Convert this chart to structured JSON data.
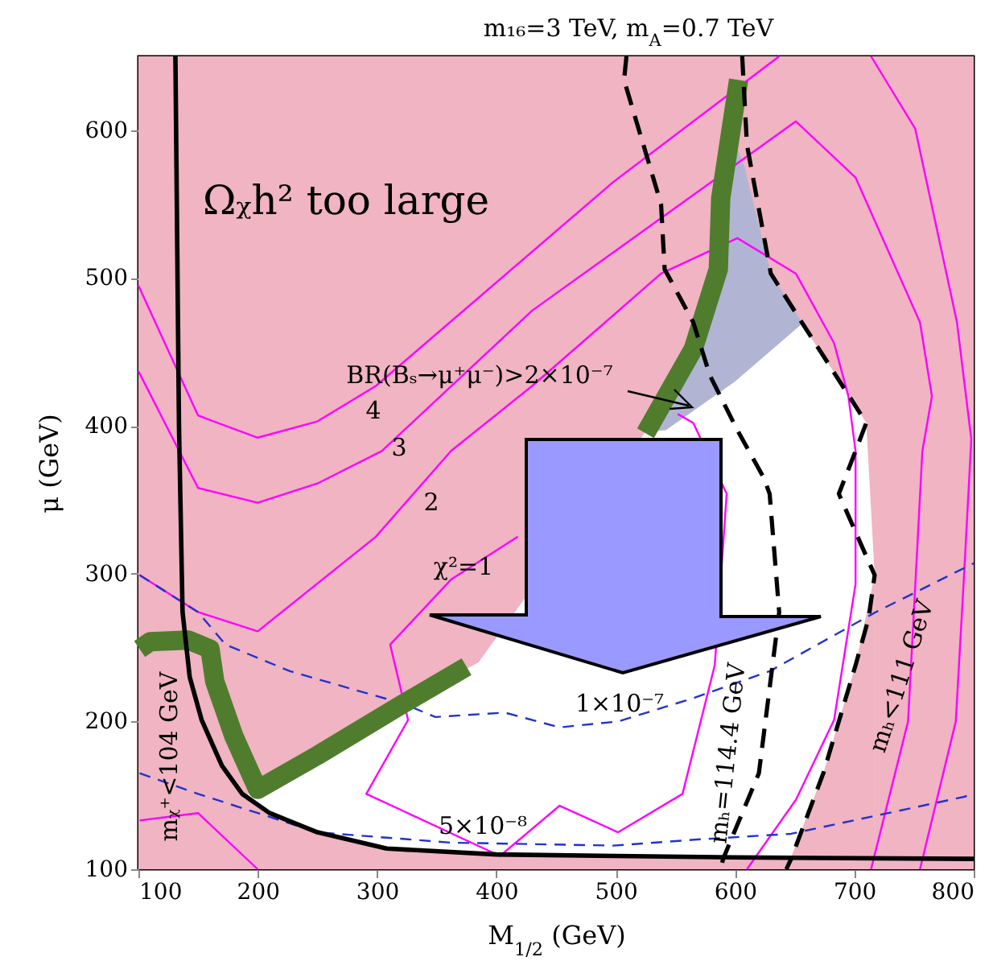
{
  "chart_data": {
    "type": "line",
    "title": "m₁₆=3 TeV,  m$_{A}$=0.7 TeV",
    "xlabel": "M$_{1/2}$ (GeV)",
    "ylabel": "μ (GeV)",
    "xlim": [
      100,
      800
    ],
    "ylim": [
      100,
      650
    ],
    "xticks": [
      100,
      200,
      300,
      400,
      500,
      600,
      700,
      800
    ],
    "yticks": [
      100,
      200,
      300,
      400,
      500,
      600
    ],
    "grid": false,
    "bands": [
      {
        "axis": "x",
        "from": 100,
        "to": 800,
        "color": "#f0b4c2",
        "label": "Ωᵪh² too large"
      }
    ],
    "series": [
      {
        "type": "area",
        "color": "#b1b5d3",
        "x": [
          528,
          542,
          565,
          586,
          596,
          608,
          630,
          656
        ],
        "values": [
          398,
          420,
          452,
          506,
          600,
          575,
          503,
          470
        ]
      },
      {
        "type": "area",
        "color": "#ffffff",
        "x": [
          192,
          200,
          250,
          322,
          385,
          525,
          542,
          600,
          656,
          680,
          700,
          710,
          717
        ],
        "values": [
          151,
          155,
          177,
          212,
          240,
          396,
          397,
          430,
          469,
          440,
          415,
          402,
          299
        ]
      },
      {
        "type": "area",
        "color": "#f0b4c2",
        "x": [
          187,
          210,
          250,
          308,
          400,
          500,
          600,
          640,
          647,
          674,
          701,
          717
        ],
        "values": [
          151,
          138,
          125,
          114,
          110,
          109,
          108,
          108,
          108,
          165,
          238,
          299
        ]
      },
      {
        "color": "#ff00ff",
        "x": [
          100,
          150,
          200,
          250,
          299,
          498,
          637
        ],
        "values": [
          495,
          407,
          392,
          403,
          427,
          565,
          650
        ]
      },
      {
        "color": "#ff00ff",
        "x": [
          100,
          150,
          200,
          250,
          304,
          430,
          651,
          701,
          755,
          765,
          757,
          745,
          714
        ],
        "values": [
          437,
          358,
          348,
          361,
          383,
          478,
          606,
          568,
          470,
          420,
          383,
          200,
          100
        ]
      },
      {
        "color": "#ff00ff",
        "x": [
          101,
          150,
          200,
          299,
          362,
          430,
          538,
          602,
          651,
          683,
          695,
          701,
          701,
          683,
          651,
          610
        ],
        "values": [
          299,
          274,
          261,
          325,
          383,
          427,
          503,
          527,
          503,
          456,
          420,
          383,
          293,
          201,
          147,
          100
        ]
      },
      {
        "color": "#ff00ff",
        "x": [
          552,
          565,
          593,
          583,
          556,
          502,
          453,
          403,
          291,
          326,
          311,
          362,
          418
        ],
        "values": [
          408,
          402,
          354,
          238,
          151,
          125,
          143,
          109,
          151,
          201,
          252,
          296,
          325
        ]
      },
      {
        "color": "#ff00ff",
        "x": [
          714,
          751,
          786,
          798,
          792,
          785,
          755
        ],
        "values": [
          650,
          601,
          470,
          391,
          300,
          200,
          100
        ]
      },
      {
        "color": "#ff00ff",
        "x": [
          101,
          150,
          200
        ],
        "values": [
          133,
          138,
          100
        ]
      },
      {
        "color": "#2233cc",
        "line_style": "dashed",
        "x": [
          101,
          150,
          173,
          227,
          322,
          349,
          407,
          453,
          502,
          566,
          629,
          718,
          800
        ],
        "values": [
          299,
          274,
          252,
          234,
          212,
          203,
          206,
          196,
          200,
          216,
          234,
          274,
          307
        ]
      },
      {
        "color": "#2233cc",
        "line_style": "dashed",
        "x": [
          101,
          150,
          200,
          250,
          362,
          498,
          566,
          647,
          792,
          800
        ],
        "values": [
          165,
          151,
          138,
          125,
          118,
          116,
          120,
          124,
          149,
          151
        ]
      },
      {
        "color": "#4f7d2d",
        "x": [
          101,
          110,
          142,
          160,
          164,
          180,
          200,
          250,
          322,
          375,
          417,
          470,
          525,
          565,
          586,
          588,
          603
        ],
        "values": [
          249,
          254,
          255,
          249,
          227,
          190,
          154,
          177,
          212,
          237,
          null,
          null,
          395,
          452,
          506,
          554,
          634
        ]
      },
      {
        "color": "#000000",
        "x": [
          131,
          134,
          137,
          143,
          153,
          170,
          187,
          210,
          250,
          308,
          400,
          500,
          600,
          800
        ],
        "values": [
          650,
          400,
          274,
          230,
          201,
          170,
          151,
          138,
          125,
          114,
          110,
          109,
          108,
          107
        ]
      },
      {
        "color": "#000000",
        "line_style": "dashed",
        "x": [
          509,
          507,
          538,
          541,
          565,
          579,
          602,
          624,
          629,
          637,
          620,
          590,
          588
        ],
        "values": [
          650,
          634,
          550,
          506,
          470,
          434,
          397,
          365,
          354,
          274,
          165,
          107,
          100
        ]
      },
      {
        "color": "#000000",
        "line_style": "dashed",
        "x": [
          606,
          610,
          630,
          656,
          710,
          701,
          687,
          700,
          717,
          712,
          701,
          674,
          647,
          643
        ],
        "values": [
          650,
          590,
          503,
          470,
          402,
          383,
          354,
          330,
          299,
          270,
          238,
          165,
          107,
          100
        ]
      }
    ],
    "annotations": [
      "4",
      "3",
      "2",
      "χ²=1",
      "1×10⁻⁷",
      "5×10⁻⁸",
      "mₕ=114.4 GeV",
      "mₕ<111 GeV",
      "mᵪ⁺<104 GeV",
      "BR(Bₛ→μ⁺μ⁻)>2×10⁻⁷"
    ]
  }
}
